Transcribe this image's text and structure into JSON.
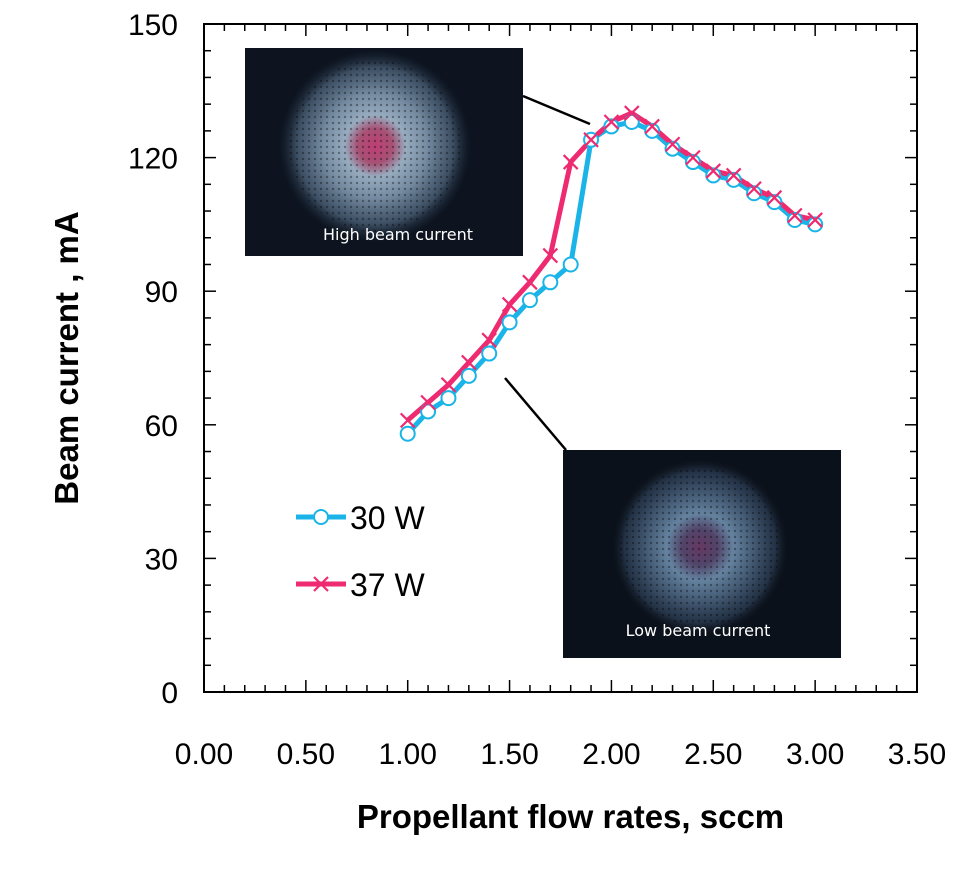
{
  "chart_data": {
    "type": "line",
    "title": "",
    "xlabel": "Propellant flow rates, sccm",
    "ylabel": "Beam current , mA",
    "xlim": [
      0,
      3.5
    ],
    "ylim": [
      0,
      150
    ],
    "x_ticks": [
      "0.00",
      "0.50",
      "1.00",
      "1.50",
      "2.00",
      "2.50",
      "3.00",
      "3.50"
    ],
    "y_ticks": [
      "0",
      "30",
      "60",
      "90",
      "120",
      "150"
    ],
    "x_tick_values": [
      0,
      0.5,
      1.0,
      1.5,
      2.0,
      2.5,
      3.0,
      3.5
    ],
    "y_tick_values": [
      0,
      30,
      60,
      90,
      120,
      150
    ],
    "grid": false,
    "legend_position": "lower-left",
    "series": [
      {
        "name": "30 W",
        "color": "#1ab4e8",
        "marker": "circle",
        "x": [
          1.0,
          1.1,
          1.2,
          1.3,
          1.4,
          1.5,
          1.6,
          1.7,
          1.8,
          1.9,
          2.0,
          2.1,
          2.2,
          2.3,
          2.4,
          2.5,
          2.6,
          2.7,
          2.8,
          2.9,
          3.0
        ],
        "y": [
          58,
          63,
          66,
          71,
          76,
          83,
          88,
          92,
          96,
          124,
          127,
          128,
          126,
          122,
          119,
          116,
          115,
          112,
          110,
          106,
          105
        ]
      },
      {
        "name": "37 W",
        "color": "#ee2a70",
        "marker": "x",
        "x": [
          1.0,
          1.1,
          1.2,
          1.3,
          1.4,
          1.5,
          1.6,
          1.7,
          1.8,
          1.9,
          2.0,
          2.1,
          2.2,
          2.3,
          2.4,
          2.5,
          2.6,
          2.7,
          2.8,
          2.9,
          3.0
        ],
        "y": [
          61,
          65,
          69,
          74,
          79,
          87,
          92,
          98,
          119,
          124,
          128,
          130,
          127,
          123,
          120,
          117,
          116,
          113,
          111,
          107,
          106
        ]
      }
    ],
    "annotations": [
      {
        "caption": "High beam current",
        "points_to": {
          "x": 1.9,
          "y": 126
        }
      },
      {
        "caption": "Low beam current",
        "points_to": {
          "x": 1.7,
          "y": 80
        }
      }
    ]
  }
}
